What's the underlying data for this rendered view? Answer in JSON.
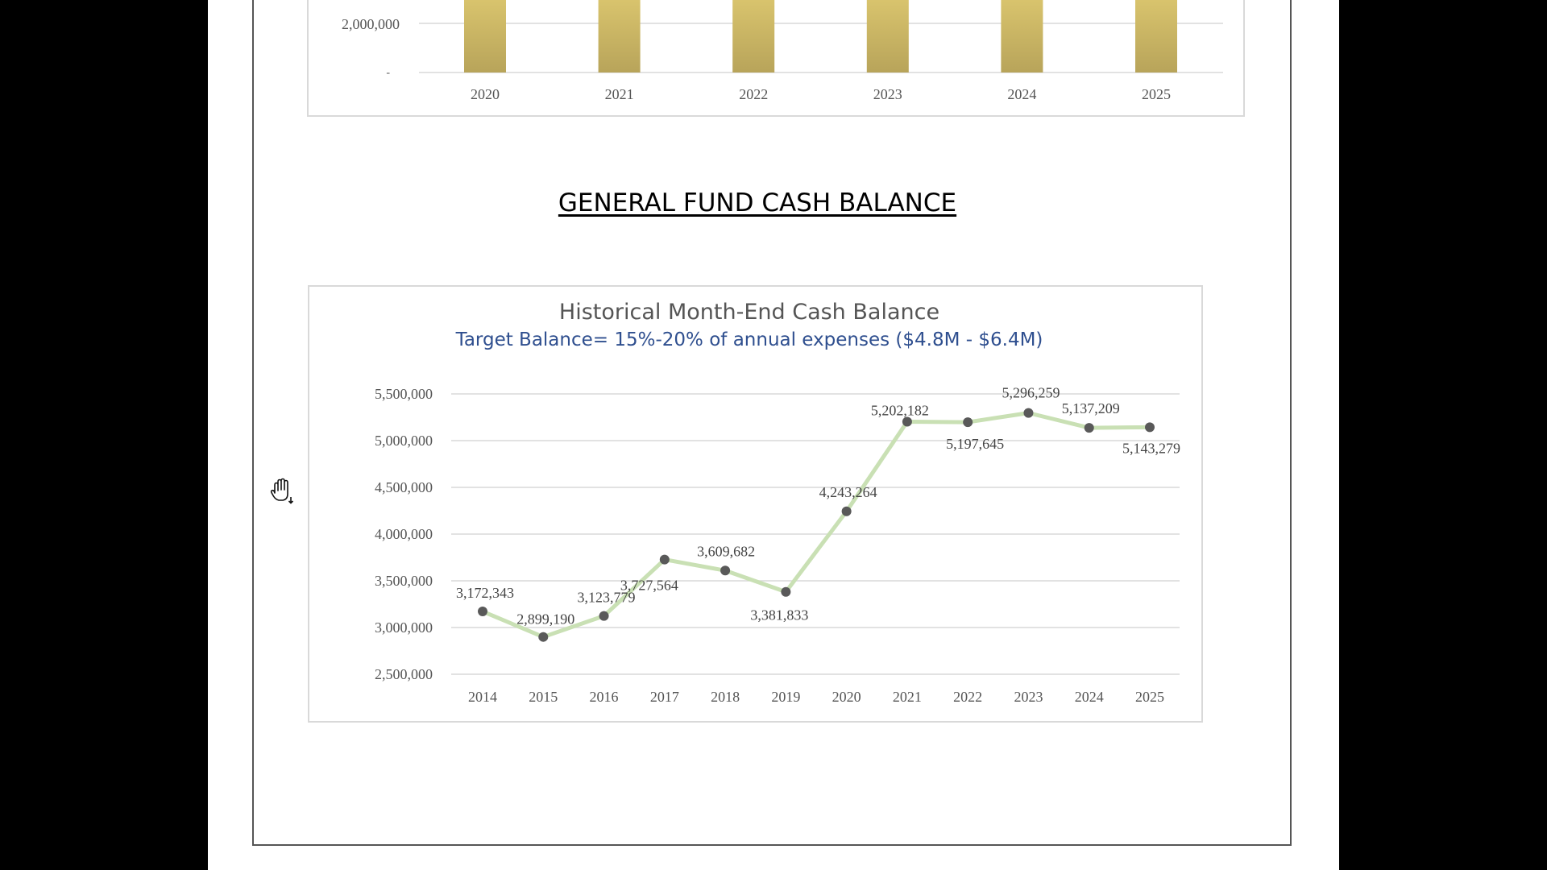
{
  "section_title": "GENERAL FUND CASH BALANCE",
  "colors": {
    "bar_gold": "#b8a45a",
    "line_green": "#c9e0b4",
    "marker": "#595959",
    "subtitle_blue": "#2f4f8f"
  },
  "cursor_icon": "hand-grab-icon",
  "chart_data": [
    {
      "type": "bar",
      "partial": true,
      "categories": [
        "2020",
        "2021",
        "2022",
        "2023",
        "2024",
        "2025"
      ],
      "visible_ytick_labels": [
        "2,000,000",
        "-"
      ],
      "grid": true
    },
    {
      "type": "line",
      "title": "Historical Month-End Cash Balance",
      "subtitle": "Target Balance= 15%-20% of annual expenses ($4.8M - $6.4M)",
      "x": [
        "2014",
        "2015",
        "2016",
        "2017",
        "2018",
        "2019",
        "2020",
        "2021",
        "2022",
        "2023",
        "2024",
        "2025"
      ],
      "values": [
        3172343,
        2899190,
        3123779,
        3727564,
        3609682,
        3381833,
        4243264,
        5202182,
        5197645,
        5296259,
        5137209,
        5143279
      ],
      "data_labels": [
        "3,172,343",
        "2,899,190",
        "3,123,779",
        "3,727,564",
        "3,609,682",
        "3,381,833",
        "4,243,264",
        "5,202,182",
        "5,197,645",
        "5,296,259",
        "5,137,209",
        "5,143,279"
      ],
      "yticks": [
        "2,500,000",
        "3,000,000",
        "3,500,000",
        "4,000,000",
        "4,500,000",
        "5,000,000",
        "5,500,000"
      ],
      "ylim": [
        2500000,
        5500000
      ],
      "grid": true,
      "legend": "none"
    }
  ]
}
